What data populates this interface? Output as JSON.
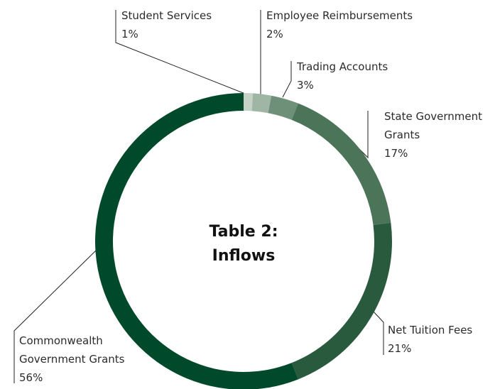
{
  "chart_data": {
    "type": "donut",
    "title": "Table 2: Inflows",
    "categories": [
      "Student Services",
      "Employee Reimbursements",
      "Trading Accounts",
      "State Government Grants",
      "Net Tuition Fees",
      "Commonwealth Government Grants"
    ],
    "values": [
      1,
      2,
      3,
      17,
      21,
      56
    ],
    "value_labels": [
      "1%",
      "2%",
      "3%",
      "17%",
      "21%",
      "56%"
    ],
    "colors": [
      "#c5d3c7",
      "#9fb6a5",
      "#6f9078",
      "#4c7459",
      "#2a5a3e",
      "#004a2b"
    ]
  }
}
